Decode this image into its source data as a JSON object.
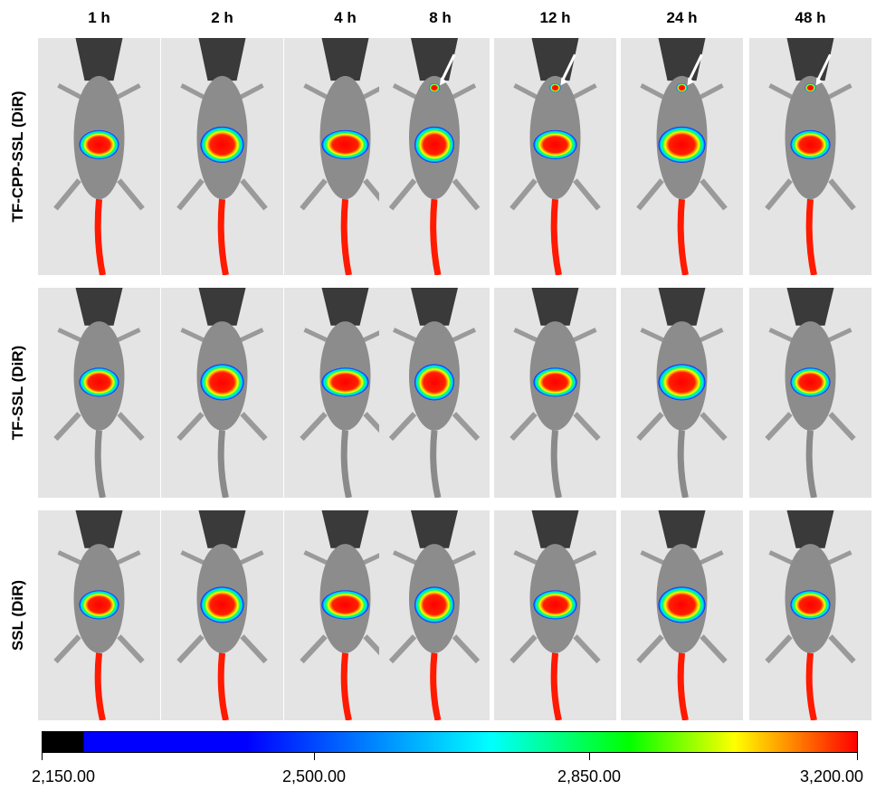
{
  "timepoints": [
    "1 h",
    "2 h",
    "4 h",
    "8 h",
    "12 h",
    "24 h",
    "48 h"
  ],
  "groups": [
    "TF-CPP-SSL (DiR)",
    "TF-SSL (DiR)",
    "SSL (DiR)"
  ],
  "colorbar": {
    "min": "2,150.00",
    "ticks": [
      "2,150.00",
      "2,500.00",
      "2,850.00",
      "3,200.00"
    ],
    "colors": [
      "#000000",
      "#0000ff",
      "#00ffff",
      "#00ff00",
      "#ffff00",
      "#ff0000"
    ]
  },
  "arrows": {
    "group": "TF-CPP-SSL (DiR)",
    "timepoints": [
      "8 h",
      "12 h",
      "24 h",
      "48 h"
    ],
    "color": "#ffffff"
  }
}
